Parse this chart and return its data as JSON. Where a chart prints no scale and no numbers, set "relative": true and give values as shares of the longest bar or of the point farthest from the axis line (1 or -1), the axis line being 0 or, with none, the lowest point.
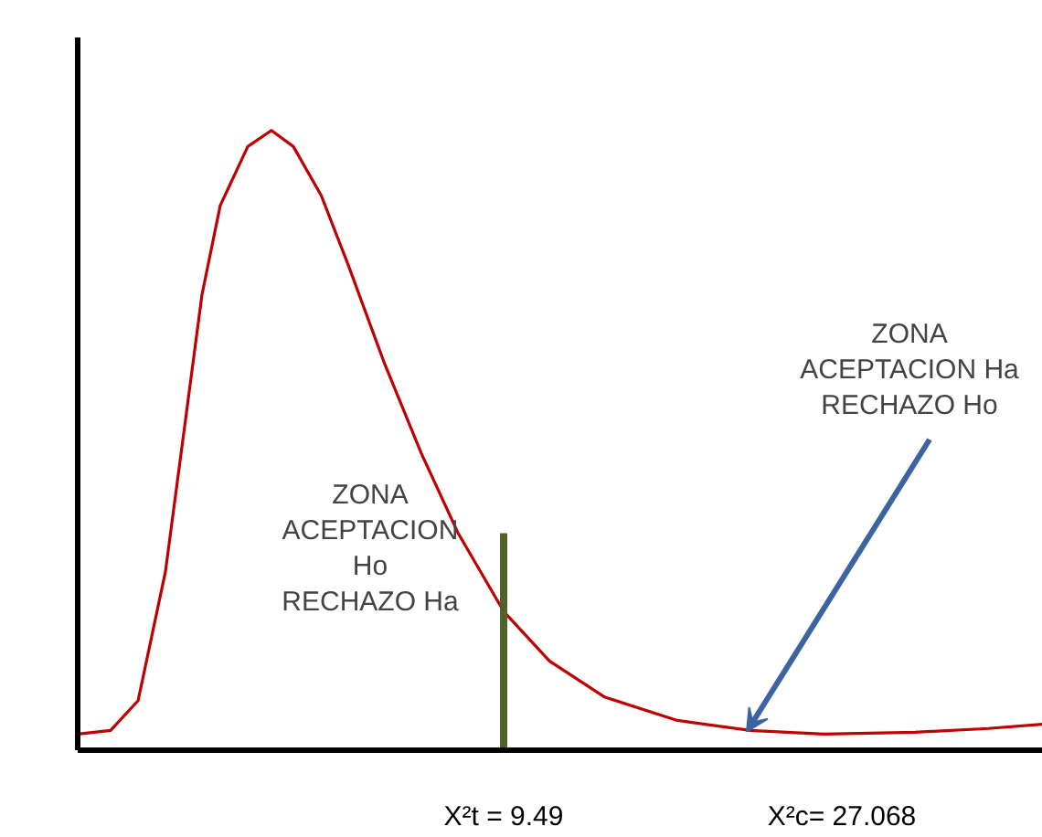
{
  "chart_data": {
    "type": "line",
    "relative": true,
    "color": "#c00000",
    "x": [
      -12.65,
      -10.94,
      -9.51,
      -8.09,
      -7.14,
      -6.19,
      -5.24,
      -3.81,
      -2.58,
      -1.44,
      0.01,
      1.41,
      3.31,
      5.21,
      7.11,
      9.49,
      11.87,
      14.72,
      18.52,
      22.32,
      26.12,
      30.87,
      34.67,
      37.52
    ],
    "values": [
      0.026,
      0.032,
      0.08,
      0.288,
      0.511,
      0.735,
      0.879,
      0.974,
      1,
      0.974,
      0.895,
      0.783,
      0.623,
      0.479,
      0.351,
      0.224,
      0.144,
      0.086,
      0.048,
      0.032,
      0.026,
      0.029,
      0.035,
      0.042
    ],
    "xlim": [
      -12.65,
      37.52
    ],
    "xticks": [
      {
        "value": 9.49,
        "label": "X²t = 9.49"
      },
      {
        "value": 27.068,
        "label": "X²c= 27.068"
      }
    ],
    "tick_labels": "x",
    "grid": false,
    "marker": "none",
    "line_style": "solid",
    "ref_lines": [
      {
        "axis": "x",
        "value": 9.49,
        "label": null,
        "color": "#4f6228"
      }
    ],
    "annotations": [
      "ZONA\nACEPTACION\nHo\nRECHAZO Ha",
      {
        "text": "ZONA\nACEPTACION Ha\nRECHAZO Ho",
        "x": 22.13,
        "y": 0.03
      }
    ]
  }
}
